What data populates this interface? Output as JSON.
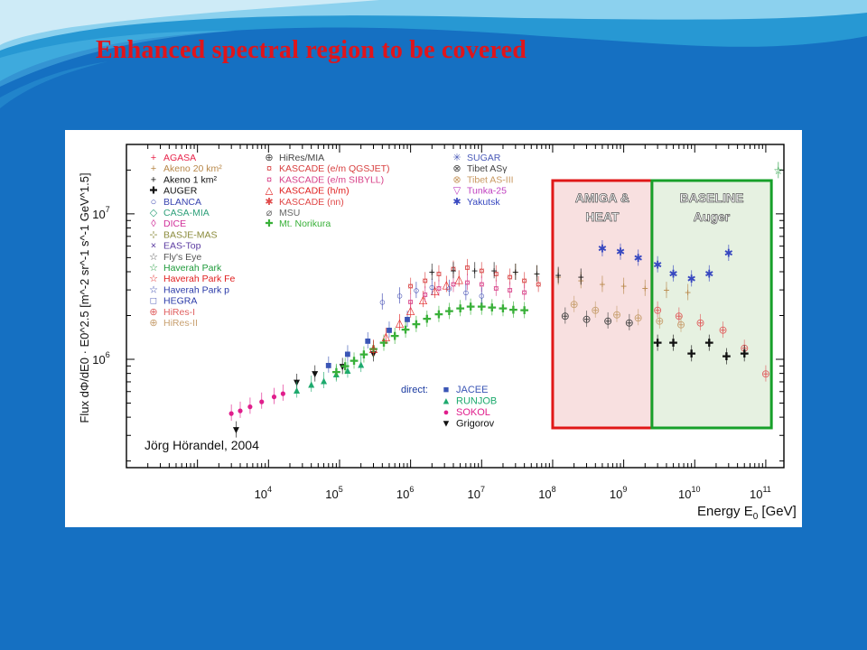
{
  "slide": {
    "title": "Enhanced spectral region to be covered",
    "colors": {
      "background": "#1570c2",
      "title": "#e0151b"
    }
  },
  "chart_data": {
    "type": "scatter",
    "log_x": true,
    "log_y": true,
    "xlim": [
      100,
      180000000000.0
    ],
    "ylim": [
      180000,
      30000000
    ],
    "grid": false,
    "legend_position": "top-left",
    "xlabel": "Energy E",
    "xlabel_sub": "0",
    "xlabel_unit": " [GeV]",
    "ylabel": "Flux dΦ/dE0 · E0^2.5 [m^-2 sr^-1 s^-1 GeV^1.5]",
    "credit": "Jörg Hörandel, 2004",
    "direct_label": "direct:",
    "x_ticks": [
      {
        "v": 10000,
        "label": "10",
        "exp": "4"
      },
      {
        "v": 100000,
        "label": "10",
        "exp": "5"
      },
      {
        "v": 1000000,
        "label": "10",
        "exp": "6"
      },
      {
        "v": 10000000,
        "label": "10",
        "exp": "7"
      },
      {
        "v": 100000000,
        "label": "10",
        "exp": "8"
      },
      {
        "v": 1000000000,
        "label": "10",
        "exp": "9"
      },
      {
        "v": 10000000000,
        "label": "10",
        "exp": "10"
      },
      {
        "v": 100000000000,
        "label": "10",
        "exp": "11"
      }
    ],
    "y_ticks": [
      {
        "v": 1000000,
        "label": "10",
        "exp": "6"
      },
      {
        "v": 10000000,
        "label": "10",
        "exp": "7"
      }
    ],
    "regions": [
      {
        "name": "AMIGA & HEAT",
        "line1": "AMIGA &",
        "line2": "HEAT",
        "x_from": 100000000,
        "x_to": 2500000000,
        "fill": "#f7dcdc",
        "edge": "#e01818"
      },
      {
        "name": "BASELINE Auger",
        "line1": "BASELINE",
        "line2": "Auger",
        "x_from": 2500000000,
        "x_to": 120000000000,
        "fill": "#e3efdd",
        "edge": "#17a02a"
      }
    ],
    "legend_columns": [
      [
        {
          "label": "AGASA",
          "color": "#e8244b",
          "marker": "+"
        },
        {
          "label": "Akeno 20 km²",
          "color": "#b8884a",
          "marker": "+"
        },
        {
          "label": "Akeno 1 km²",
          "color": "#111111",
          "marker": "+"
        },
        {
          "label": "AUGER",
          "color": "#111111",
          "marker": "✚"
        },
        {
          "label": "BLANCA",
          "color": "#3a45b0",
          "marker": "○"
        },
        {
          "label": "CASA-MIA",
          "color": "#2ea07a",
          "marker": "◇"
        },
        {
          "label": "DICE",
          "color": "#d0309a",
          "marker": "◊"
        },
        {
          "label": "BASJE-MAS",
          "color": "#8a8a3a",
          "marker": "⊹"
        },
        {
          "label": "EAS-Top",
          "color": "#5a3aa0",
          "marker": "×"
        },
        {
          "label": "Fly's Eye",
          "color": "#555555",
          "marker": "☆"
        },
        {
          "label": "Haverah Park",
          "color": "#1e9a3a",
          "marker": "☆"
        },
        {
          "label": "Haverah Park Fe",
          "color": "#e02020",
          "marker": "☆"
        },
        {
          "label": "Haverah Park p",
          "color": "#2a3aa8",
          "marker": "☆"
        },
        {
          "label": "HEGRA",
          "color": "#2a3aa8",
          "marker": "□"
        },
        {
          "label": "HiRes-I",
          "color": "#e06060",
          "marker": "⊕"
        },
        {
          "label": "HiRes-II",
          "color": "#c8a070",
          "marker": "⊕"
        }
      ],
      [
        {
          "label": "HiRes/MIA",
          "color": "#444444",
          "marker": "⊕"
        },
        {
          "label": "KASCADE (e/m QGSJET)",
          "color": "#d84040",
          "marker": "¤"
        },
        {
          "label": "KASCADE (e/m SIBYLL)",
          "color": "#d84088",
          "marker": "¤"
        },
        {
          "label": "KASCADE (h/m)",
          "color": "#e02020",
          "marker": "△"
        },
        {
          "label": "KASCADE (nn)",
          "color": "#e04848",
          "marker": "✱"
        },
        {
          "label": "MSU",
          "color": "#666666",
          "marker": "⌀"
        },
        {
          "label": "Mt. Norikura",
          "color": "#38b038",
          "marker": "✚"
        }
      ],
      [
        {
          "label": "SUGAR",
          "color": "#4a5ab8",
          "marker": "✳"
        },
        {
          "label": "Tibet ASγ",
          "color": "#444444",
          "marker": "⊗"
        },
        {
          "label": "Tibet AS-III",
          "color": "#c89860",
          "marker": "⊗"
        },
        {
          "label": "Tunka-25",
          "color": "#c040c0",
          "marker": "▽"
        },
        {
          "label": "Yakutsk",
          "color": "#3848c0",
          "marker": "✱"
        }
      ]
    ],
    "direct_legend": [
      {
        "label": "JACEE",
        "color": "#3a55b5",
        "marker": "■"
      },
      {
        "label": "RUNJOB",
        "color": "#1eaa6e",
        "marker": "▲"
      },
      {
        "label": "SOKOL",
        "color": "#e01e8c",
        "marker": "●"
      },
      {
        "label": "Grigorov",
        "color": "#111111",
        "marker": "▼"
      }
    ],
    "series": [
      {
        "name": "SOKOL",
        "color": "#e01e8c",
        "marker": "●",
        "x": [
          3000,
          4000,
          5500,
          8000,
          12000,
          16000
        ],
        "y": [
          430000,
          450000,
          480000,
          520000,
          560000,
          590000
        ]
      },
      {
        "name": "Grigorov",
        "color": "#111111",
        "marker": "▼",
        "x": [
          3500,
          25000,
          45000,
          110000,
          300000
        ],
        "y": [
          330000,
          700000,
          800000,
          900000,
          1100000
        ]
      },
      {
        "name": "RUNJOB",
        "color": "#1eaa6e",
        "marker": "▲",
        "x": [
          25000,
          40000,
          60000,
          90000,
          130000,
          200000
        ],
        "y": [
          620000,
          680000,
          720000,
          800000,
          850000,
          930000
        ]
      },
      {
        "name": "JACEE",
        "color": "#3a55b5",
        "marker": "■",
        "x": [
          70000,
          130000,
          250000,
          500000,
          900000
        ],
        "y": [
          920000,
          1100000,
          1350000,
          1600000,
          1900000
        ]
      },
      {
        "name": "Mt. Norikura",
        "color": "#38b038",
        "marker": "✚",
        "x": [
          90000,
          120000,
          160000,
          220000,
          300000,
          420000,
          600000,
          850000,
          1200000,
          1700000,
          2500000,
          3500000,
          5000000,
          7000000,
          10000000,
          14000000,
          20000000,
          28000000,
          40000000
        ],
        "y": [
          820000,
          900000,
          980000,
          1080000,
          1180000,
          1300000,
          1450000,
          1600000,
          1750000,
          1900000,
          2050000,
          2150000,
          2250000,
          2300000,
          2300000,
          2280000,
          2250000,
          2200000,
          2180000
        ]
      },
      {
        "name": "KASCADE (h/m)",
        "color": "#e02020",
        "marker": "△",
        "x": [
          300000,
          450000,
          700000,
          1000000,
          1500000,
          2200000,
          3200000,
          4800000
        ],
        "y": [
          1200000,
          1450000,
          1800000,
          2200000,
          2600000,
          3000000,
          3300000,
          3600000
        ]
      },
      {
        "name": "KASCADE (e/m QGSJET)",
        "color": "#d84040",
        "marker": "¤",
        "x": [
          1000000,
          1600000,
          2500000,
          4000000,
          6300000,
          10000000,
          16000000,
          25000000,
          40000000,
          63000000
        ],
        "y": [
          3200000,
          3500000,
          3900000,
          4200000,
          4300000,
          4100000,
          3900000,
          3700000,
          3500000,
          3300000
        ]
      },
      {
        "name": "KASCADE (e/m SIBYLL)",
        "color": "#d84088",
        "marker": "¤",
        "x": [
          1000000,
          1600000,
          2500000,
          4000000,
          6300000,
          10000000,
          16000000,
          25000000,
          40000000
        ],
        "y": [
          2500000,
          2800000,
          3100000,
          3300000,
          3400000,
          3300000,
          3100000,
          3000000,
          2900000
        ]
      },
      {
        "name": "BLANCA",
        "color": "#3a45b0",
        "marker": "○",
        "x": [
          400000,
          700000,
          1200000,
          2000000,
          3500000,
          6000000,
          10000000
        ],
        "y": [
          2500000,
          2750000,
          3000000,
          3150000,
          3100000,
          2900000,
          2750000
        ]
      },
      {
        "name": "Akeno 20 km²",
        "color": "#b8884a",
        "marker": "+",
        "x": [
          30000000,
          60000000,
          120000000,
          250000000,
          500000000,
          1000000000,
          2000000000,
          4000000000,
          8000000000
        ],
        "y": [
          4000000,
          3900000,
          3700000,
          3500000,
          3300000,
          3200000,
          3100000,
          3000000,
          2900000
        ]
      },
      {
        "name": "Akeno 1 km²",
        "color": "#111111",
        "marker": "+",
        "x": [
          2000000,
          4000000,
          8000000,
          15000000,
          30000000,
          60000000,
          120000000,
          250000000
        ],
        "y": [
          4000000,
          4100000,
          4100000,
          4100000,
          4000000,
          3900000,
          3800000,
          3700000
        ]
      },
      {
        "name": "HiRes-I",
        "color": "#e06060",
        "marker": "⊕",
        "x": [
          3000000000,
          6000000000,
          12000000000,
          25000000000,
          50000000000,
          100000000000
        ],
        "y": [
          2200000,
          2000000,
          1800000,
          1600000,
          1200000,
          800000
        ]
      },
      {
        "name": "HiRes-II",
        "color": "#c8a070",
        "marker": "⊕",
        "x": [
          200000000,
          400000000,
          800000000,
          1600000000,
          3200000000,
          6400000000
        ],
        "y": [
          2400000,
          2200000,
          2050000,
          1950000,
          1850000,
          1750000
        ]
      },
      {
        "name": "HiRes/MIA",
        "color": "#444444",
        "marker": "⊕",
        "x": [
          150000000,
          300000000,
          600000000,
          1200000000
        ],
        "y": [
          2000000,
          1900000,
          1850000,
          1800000
        ]
      },
      {
        "name": "Yakutsk",
        "color": "#3848c0",
        "marker": "✱",
        "x": [
          500000000,
          900000000,
          1600000000,
          3000000000,
          5000000000,
          9000000000,
          16000000000,
          30000000000
        ],
        "y": [
          5800000,
          5500000,
          5000000,
          4500000,
          3900000,
          3600000,
          3900000,
          5400000
        ]
      },
      {
        "name": "AUGER",
        "color": "#111111",
        "marker": "✚",
        "x": [
          3000000000,
          5000000000,
          9000000000,
          16000000000,
          28000000000,
          50000000000
        ],
        "y": [
          1300000,
          1300000,
          1100000,
          1300000,
          1050000,
          1100000
        ]
      },
      {
        "name": "Haverah Park",
        "color": "#1e9a3a",
        "marker": "☆",
        "x": [
          150000000000
        ],
        "y": [
          20000000
        ]
      }
    ]
  }
}
